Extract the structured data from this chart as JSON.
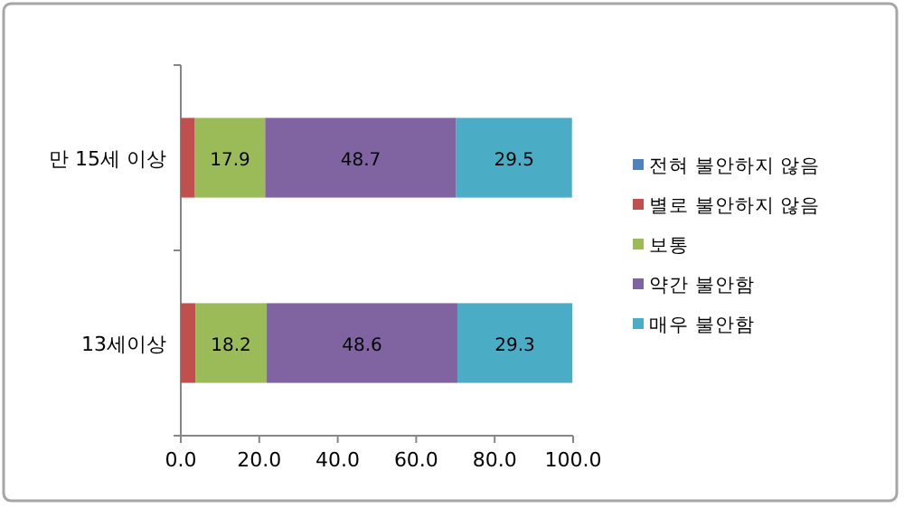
{
  "chart_data": {
    "type": "bar",
    "orientation": "horizontal",
    "stacked": true,
    "categories": [
      "만 15세 이상",
      "13세이상"
    ],
    "series": [
      {
        "name": "전혀 불안하지 않음",
        "color": "#4f81bd",
        "values": [
          null,
          null
        ]
      },
      {
        "name": "별로 불안하지 않음",
        "color": "#c0504d",
        "values": [
          3.6,
          3.7
        ]
      },
      {
        "name": "보통",
        "color": "#9bbb59",
        "values": [
          17.9,
          18.2
        ],
        "value_labels": [
          "17.9",
          "18.2"
        ]
      },
      {
        "name": "약간 불안함",
        "color": "#8064a2",
        "values": [
          48.7,
          48.6
        ],
        "value_labels": [
          "48.7",
          "48.6"
        ]
      },
      {
        "name": "매우 불안함",
        "color": "#4bacc6",
        "values": [
          29.5,
          29.3
        ],
        "value_labels": [
          "29.5",
          "29.3"
        ]
      }
    ],
    "xlim": [
      0,
      100
    ],
    "xticks": [
      {
        "value": 0,
        "label": "0.0"
      },
      {
        "value": 20,
        "label": "20.0"
      },
      {
        "value": 40,
        "label": "40.0"
      },
      {
        "value": 60,
        "label": "60.0"
      },
      {
        "value": 80,
        "label": "80.0"
      },
      {
        "value": 100,
        "label": "100.0"
      }
    ],
    "grid": false,
    "legend": "right"
  }
}
